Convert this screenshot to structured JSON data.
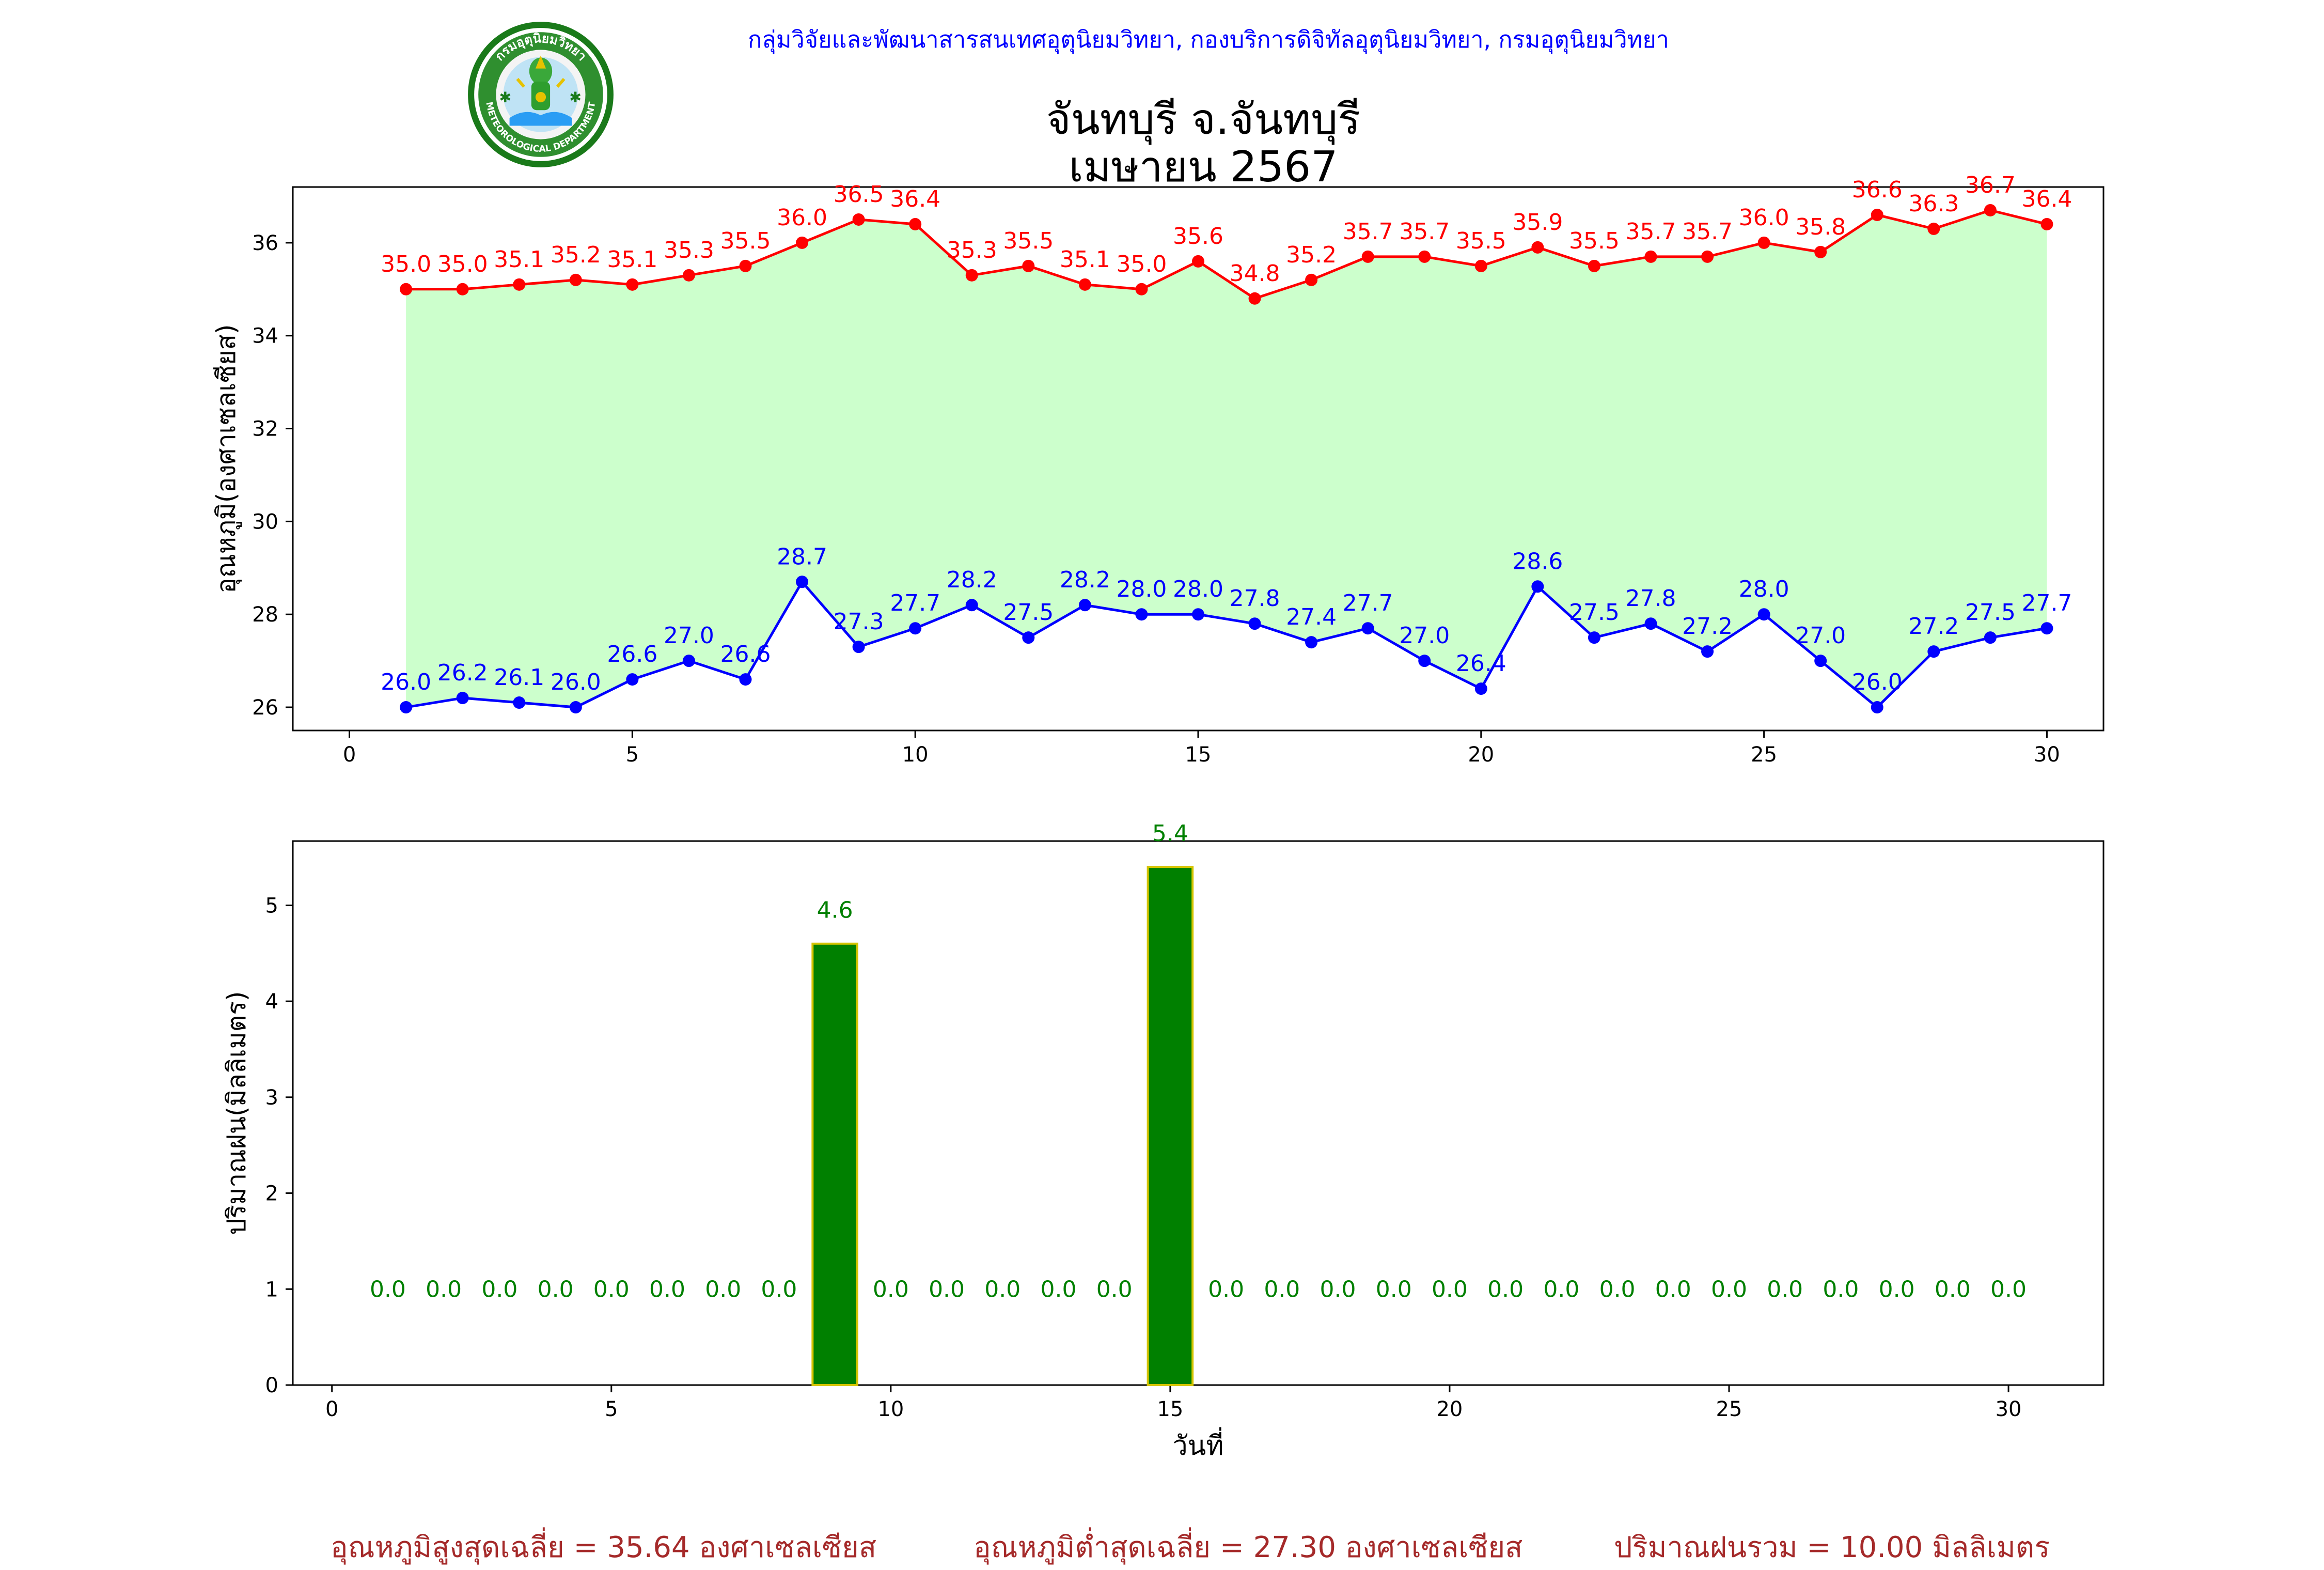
{
  "header": {
    "org_line": "กลุ่มวิจัยและพัฒนาสารสนเทศอุตุนิยมวิทยา, กองบริการดิจิทัลอุตุนิยมวิทยา, กรมอุตุนิยมวิทยา",
    "title_line1": "จันทบุรี จ.จันทบุรี",
    "title_line2": "เมษายน 2567",
    "logo": {
      "ring_text_top": "กรมอุตุนิยมวิทยา",
      "ring_text_bottom": "METEOROLOGICAL DEPARTMENT"
    }
  },
  "colors": {
    "max": "#ff0000",
    "min": "#0000ff",
    "fill": "#ccffcc",
    "bar": "#008000",
    "bar_edge": "#d4c400",
    "rain_label": "#008000",
    "summary": "#a52a2a"
  },
  "chart_data": [
    {
      "type": "line",
      "ylabel": "อุณหภูมิ(องศาเซลเซียส)",
      "xlim": [
        -1,
        31
      ],
      "ylim": [
        25.5,
        37.2
      ],
      "xticks": [
        0,
        5,
        10,
        15,
        20,
        25,
        30
      ],
      "yticks": [
        26,
        28,
        30,
        32,
        34,
        36
      ],
      "grid": false,
      "fill_between": true,
      "x": [
        1,
        2,
        3,
        4,
        5,
        6,
        7,
        8,
        9,
        10,
        11,
        12,
        13,
        14,
        15,
        16,
        17,
        18,
        19,
        20,
        21,
        22,
        23,
        24,
        25,
        26,
        27,
        28,
        29,
        30
      ],
      "series": [
        {
          "values": [
            35.0,
            35.0,
            35.1,
            35.2,
            35.1,
            35.3,
            35.5,
            36.0,
            36.5,
            36.4,
            35.3,
            35.5,
            35.1,
            35.0,
            35.6,
            34.8,
            35.2,
            35.7,
            35.7,
            35.5,
            35.9,
            35.5,
            35.7,
            35.7,
            36.0,
            35.8,
            36.6,
            36.3,
            36.7,
            36.4
          ]
        },
        {
          "values": [
            26.0,
            26.2,
            26.1,
            26.0,
            26.6,
            27.0,
            26.6,
            28.7,
            27.3,
            27.7,
            28.2,
            27.5,
            28.2,
            28.0,
            28.0,
            27.8,
            27.4,
            27.7,
            27.0,
            26.4,
            28.6,
            27.5,
            27.8,
            27.2,
            28.0,
            27.0,
            26.0,
            27.2,
            27.5,
            27.7
          ]
        }
      ]
    },
    {
      "type": "bar",
      "ylabel": "ปริมาณฝน(มิลลิเมตร)",
      "xlabel": "วันที่",
      "xlim": [
        -0.7,
        31.7
      ],
      "ylim": [
        0,
        5.67
      ],
      "xticks": [
        0,
        5,
        10,
        15,
        20,
        25,
        30
      ],
      "yticks": [
        0,
        1,
        2,
        3,
        4,
        5
      ],
      "grid": false,
      "x": [
        1,
        2,
        3,
        4,
        5,
        6,
        7,
        8,
        9,
        10,
        11,
        12,
        13,
        14,
        15,
        16,
        17,
        18,
        19,
        20,
        21,
        22,
        23,
        24,
        25,
        26,
        27,
        28,
        29,
        30
      ],
      "values": [
        0.0,
        0.0,
        0.0,
        0.0,
        0.0,
        0.0,
        0.0,
        0.0,
        4.6,
        0.0,
        0.0,
        0.0,
        0.0,
        0.0,
        5.4,
        0.0,
        0.0,
        0.0,
        0.0,
        0.0,
        0.0,
        0.0,
        0.0,
        0.0,
        0.0,
        0.0,
        0.0,
        0.0,
        0.0,
        0.0
      ]
    }
  ],
  "summary": {
    "max_avg": "อุณหภูมิสูงสุดเฉลี่ย = 35.64 องศาเซลเซียส",
    "min_avg": "อุณหภูมิต่ำสุดเฉลี่ย = 27.30 องศาเซลเซียส",
    "rain_total": "ปริมาณฝนรวม = 10.00 มิลลิเมตร"
  }
}
